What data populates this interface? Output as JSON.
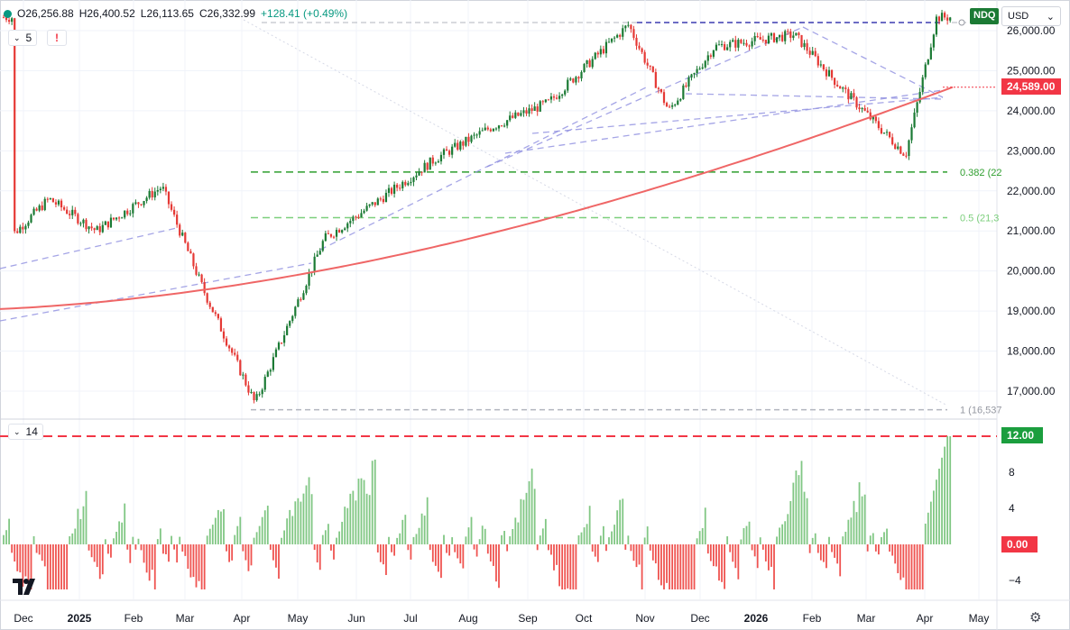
{
  "header": {
    "ohlc": {
      "open": "O26,256.88",
      "high": "H26,400.52",
      "low": "L26,113.65",
      "close": "C26,332.99",
      "change": "+128.41 (+0.49%)"
    },
    "ma_length": "5",
    "alert_icon": "!",
    "ticker": "NDQ",
    "currency": "USD",
    "chevron": "⌄"
  },
  "indicator": {
    "length": "14",
    "value_label": "12.00",
    "zero_label": "0.00",
    "colors": {
      "pos": "#81c784",
      "neg": "#ef5350",
      "limit": "#f23645"
    }
  },
  "price_tags": {
    "last": "24,589.00",
    "last_color": "#f23645",
    "indicator_color": "#1b9e3e",
    "zero_color": "#f23645"
  },
  "fib_labels": {
    "f382": "0.382 (22",
    "f50": "0.5 (21,3",
    "f1": "1 (16,537"
  },
  "icons": {
    "settings": "gear-icon",
    "logo": "tradingview-logo-icon"
  },
  "colors": {
    "up": "#1b7a34",
    "down": "#e53935",
    "ma": "#ef6666",
    "trend": "#8f8fe0",
    "fib_green": "#2e9e2e",
    "fib_light": "#7ccf7c",
    "top_line": "#3b3bb0",
    "grid": "#f0f3fa"
  },
  "chart_data": [
    {
      "type": "candlestick",
      "symbol": "NDQ",
      "y_ticks": [
        17000,
        18000,
        19000,
        20000,
        21000,
        22000,
        23000,
        24000,
        25000,
        26000
      ],
      "y_tick_labels": [
        "17,000.00",
        "18,000.00",
        "19,000.00",
        "20,000.00",
        "21,000.00",
        "22,000.00",
        "23,000.00",
        "24,000.00",
        "25,000.00",
        "26,000.00"
      ],
      "x_labels": [
        "Dec",
        "2025",
        "Feb",
        "Mar",
        "Apr",
        "May",
        "Jun",
        "Jul",
        "Aug",
        "Sep",
        "Oct",
        "Nov",
        "Dec",
        "2026",
        "Feb",
        "Mar",
        "Apr",
        "May"
      ],
      "ylim": [
        16537,
        26600
      ],
      "close_by_month": [
        {
          "date": "2024-11-25",
          "close": 20900
        },
        {
          "date": "2024-12-15",
          "close": 21800
        },
        {
          "date": "2025-01-10",
          "close": 21000
        },
        {
          "date": "2025-02-15",
          "close": 22100
        },
        {
          "date": "2025-03-10",
          "close": 19500
        },
        {
          "date": "2025-04-07",
          "close": 16700
        },
        {
          "date": "2025-05-15",
          "close": 20800
        },
        {
          "date": "2025-06-15",
          "close": 21800
        },
        {
          "date": "2025-07-15",
          "close": 22800
        },
        {
          "date": "2025-08-15",
          "close": 23600
        },
        {
          "date": "2025-09-15",
          "close": 24200
        },
        {
          "date": "2025-10-29",
          "close": 26150
        },
        {
          "date": "2025-11-20",
          "close": 24000
        },
        {
          "date": "2025-12-15",
          "close": 25600
        },
        {
          "date": "2026-01-28",
          "close": 25900
        },
        {
          "date": "2026-02-20",
          "close": 24700
        },
        {
          "date": "2026-03-30",
          "close": 22900
        },
        {
          "date": "2026-04-16",
          "close": 26333
        }
      ],
      "moving_average": {
        "name": "",
        "start": 19050,
        "end": 24589
      },
      "fib_levels": [
        {
          "ratio": "0.382",
          "label": "0.382 (22",
          "value": 22470
        },
        {
          "ratio": "0.5",
          "label": "0.5 (21,3",
          "value": 21330
        },
        {
          "ratio": "1",
          "label": "1 (16,537",
          "value": 16537
        }
      ],
      "last_price": 24589
    },
    {
      "type": "bar",
      "name": "",
      "length": 14,
      "y_ticks": [
        -4,
        0,
        4,
        8,
        12
      ],
      "y_tick_labels": [
        "−4",
        "0.00",
        "4",
        "8",
        "12.00"
      ],
      "ylim": [
        -5,
        12
      ],
      "limit_line": 12,
      "last_value": 12
    }
  ]
}
